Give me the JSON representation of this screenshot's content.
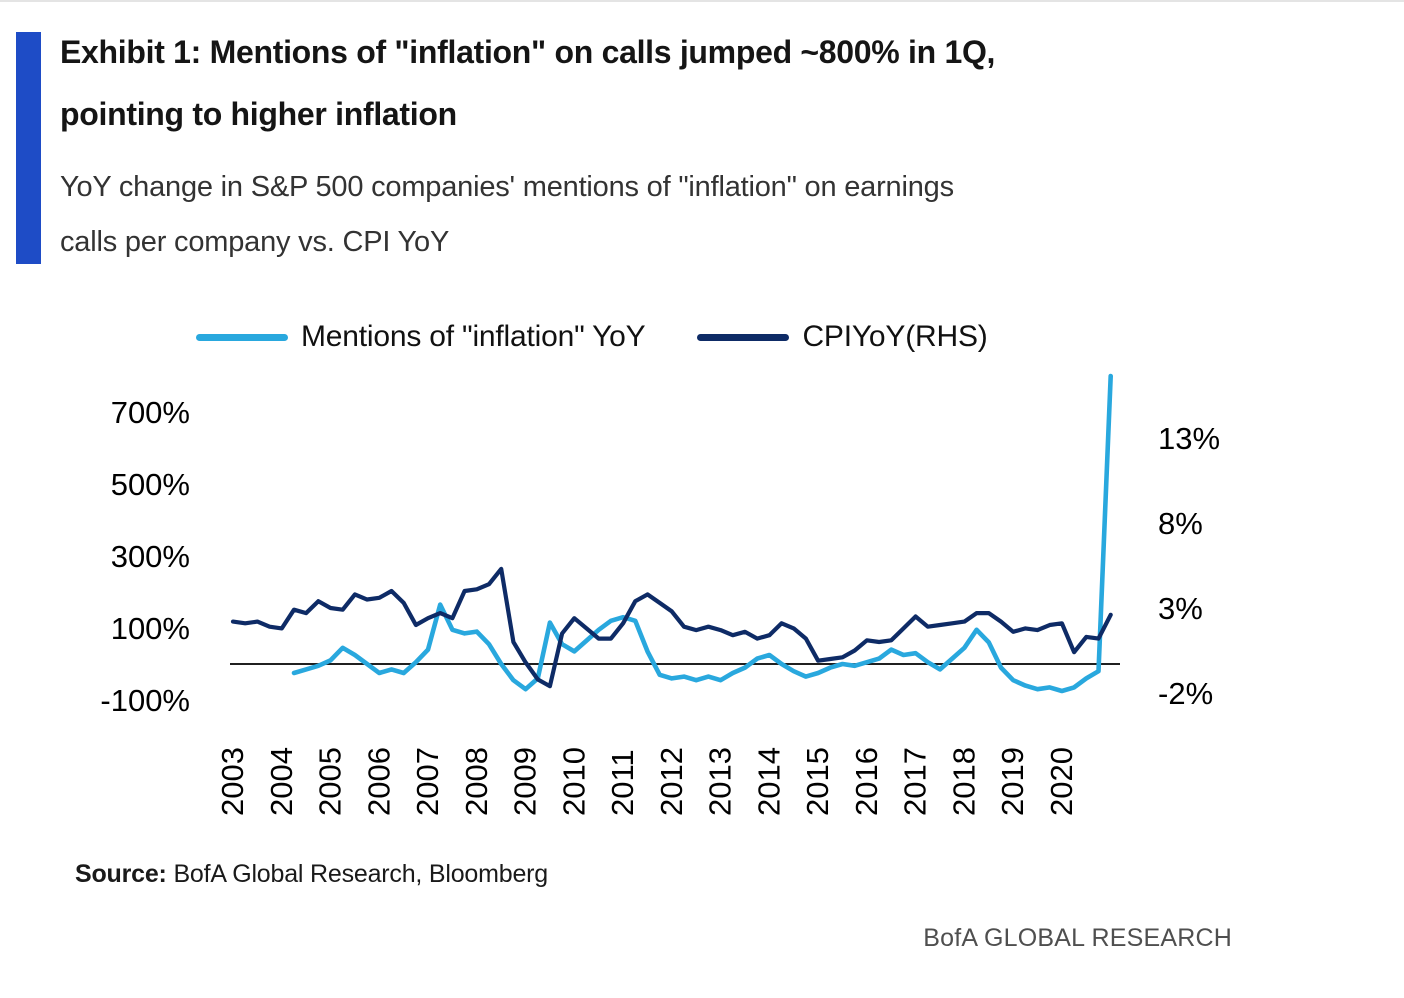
{
  "header": {
    "title_line1": "Exhibit 1: Mentions of \"inflation\" on calls jumped ~800% in 1Q,",
    "title_line2": "pointing to higher inflation",
    "subtitle_line1": "YoY change in S&P 500 companies' mentions of \"inflation\" on earnings",
    "subtitle_line2": "calls per company vs. CPI YoY"
  },
  "legend": [
    {
      "label": "Mentions of \"inflation\" YoY",
      "color": "#29A8DE"
    },
    {
      "label": "CPIYoY(RHS)",
      "color": "#0E2B66"
    }
  ],
  "footer": {
    "source_label": "Source:",
    "source_text": "BofA Global Research, Bloomberg",
    "brand": "BofA GLOBAL RESEARCH"
  },
  "chart_data": {
    "type": "line",
    "title": "YoY change in S&P 500 companies' mentions of \"inflation\" on earnings calls per company vs. CPI YoY",
    "grid": false,
    "legend_position": "top",
    "x_axis": {
      "ticks": [
        {
          "label": "2003",
          "value": 2003
        },
        {
          "label": "2004",
          "value": 2004
        },
        {
          "label": "2005",
          "value": 2005
        },
        {
          "label": "2006",
          "value": 2006
        },
        {
          "label": "2007",
          "value": 2007
        },
        {
          "label": "2008",
          "value": 2008
        },
        {
          "label": "2009",
          "value": 2009
        },
        {
          "label": "2010",
          "value": 2010
        },
        {
          "label": "2011",
          "value": 2011
        },
        {
          "label": "2012",
          "value": 2012
        },
        {
          "label": "2013",
          "value": 2013
        },
        {
          "label": "2014",
          "value": 2014
        },
        {
          "label": "2015",
          "value": 2015
        },
        {
          "label": "2016",
          "value": 2016
        },
        {
          "label": "2017",
          "value": 2017
        },
        {
          "label": "2018",
          "value": 2018
        },
        {
          "label": "2019",
          "value": 2019
        },
        {
          "label": "2020",
          "value": 2020
        }
      ]
    },
    "left_axis": {
      "name": "Mentions of \"inflation\" YoY",
      "unit": "%",
      "range": [
        -150,
        830
      ],
      "ticks": [
        {
          "label": "700%",
          "value": 700
        },
        {
          "label": "500%",
          "value": 500
        },
        {
          "label": "300%",
          "value": 300
        },
        {
          "label": "100%",
          "value": 100
        },
        {
          "label": "-100%",
          "value": -100
        }
      ]
    },
    "right_axis": {
      "name": "CPI YoY",
      "unit": "%",
      "range": [
        -3,
        14
      ],
      "ticks": [
        {
          "label": "13%",
          "value": 13
        },
        {
          "label": "8%",
          "value": 8
        },
        {
          "label": "3%",
          "value": 3
        },
        {
          "label": "-2%",
          "value": -2
        }
      ]
    },
    "series": [
      {
        "name": "Mentions of \"inflation\" YoY",
        "axis": "left",
        "color": "#29A8DE",
        "x": [
          2004.25,
          2004.5,
          2004.75,
          2005,
          2005.25,
          2005.5,
          2005.75,
          2006,
          2006.25,
          2006.5,
          2006.75,
          2007,
          2007.25,
          2007.5,
          2007.75,
          2008,
          2008.25,
          2008.5,
          2008.75,
          2009,
          2009.25,
          2009.5,
          2009.75,
          2010,
          2010.25,
          2010.5,
          2010.75,
          2011,
          2011.25,
          2011.5,
          2011.75,
          2012,
          2012.25,
          2012.5,
          2012.75,
          2013,
          2013.25,
          2013.5,
          2013.75,
          2014,
          2014.25,
          2014.5,
          2014.75,
          2015,
          2015.25,
          2015.5,
          2015.75,
          2016,
          2016.25,
          2016.5,
          2016.75,
          2017,
          2017.25,
          2017.5,
          2017.75,
          2018,
          2018.25,
          2018.5,
          2018.75,
          2019,
          2019.25,
          2019.5,
          2019.75,
          2020,
          2020.25,
          2020.5,
          2020.75,
          2021
        ],
        "values": [
          -25,
          -15,
          -5,
          10,
          45,
          25,
          0,
          -25,
          -15,
          -25,
          5,
          40,
          165,
          95,
          85,
          90,
          55,
          0,
          -45,
          -70,
          -40,
          115,
          55,
          35,
          65,
          95,
          120,
          130,
          120,
          35,
          -30,
          -40,
          -35,
          -45,
          -35,
          -45,
          -25,
          -10,
          15,
          25,
          0,
          -20,
          -35,
          -25,
          -10,
          0,
          -5,
          5,
          15,
          40,
          25,
          30,
          5,
          -15,
          15,
          45,
          95,
          60,
          -10,
          -45,
          -60,
          -70,
          -65,
          -75,
          -65,
          -40,
          -20,
          800
        ]
      },
      {
        "name": "CPIYoY(RHS)",
        "axis": "right",
        "color": "#0E2B66",
        "x": [
          2003,
          2003.25,
          2003.5,
          2003.75,
          2004,
          2004.25,
          2004.5,
          2004.75,
          2005,
          2005.25,
          2005.5,
          2005.75,
          2006,
          2006.25,
          2006.5,
          2006.75,
          2007,
          2007.25,
          2007.5,
          2007.75,
          2008,
          2008.25,
          2008.5,
          2008.75,
          2009,
          2009.25,
          2009.5,
          2009.75,
          2010,
          2010.25,
          2010.5,
          2010.75,
          2011,
          2011.25,
          2011.5,
          2011.75,
          2012,
          2012.25,
          2012.5,
          2012.75,
          2013,
          2013.25,
          2013.5,
          2013.75,
          2014,
          2014.25,
          2014.5,
          2014.75,
          2015,
          2015.25,
          2015.5,
          2015.75,
          2016,
          2016.25,
          2016.5,
          2016.75,
          2017,
          2017.25,
          2017.5,
          2017.75,
          2018,
          2018.25,
          2018.5,
          2018.75,
          2019,
          2019.25,
          2019.5,
          2019.75,
          2020,
          2020.25,
          2020.5,
          2020.75,
          2021
        ],
        "values": [
          2.2,
          2.1,
          2.2,
          1.9,
          1.8,
          2.9,
          2.7,
          3.4,
          3.0,
          2.9,
          3.8,
          3.5,
          3.6,
          4.0,
          3.3,
          2.0,
          2.4,
          2.7,
          2.4,
          4.0,
          4.1,
          4.4,
          5.3,
          1.0,
          -0.2,
          -1.2,
          -1.6,
          1.5,
          2.4,
          1.8,
          1.2,
          1.2,
          2.1,
          3.4,
          3.8,
          3.3,
          2.8,
          1.9,
          1.7,
          1.9,
          1.7,
          1.4,
          1.6,
          1.2,
          1.4,
          2.1,
          1.8,
          1.2,
          -0.1,
          0.0,
          0.1,
          0.5,
          1.1,
          1.0,
          1.1,
          1.8,
          2.5,
          1.9,
          2.0,
          2.1,
          2.2,
          2.7,
          2.7,
          2.2,
          1.6,
          1.8,
          1.7,
          2.0,
          2.1,
          0.4,
          1.3,
          1.2,
          2.6
        ]
      }
    ]
  }
}
